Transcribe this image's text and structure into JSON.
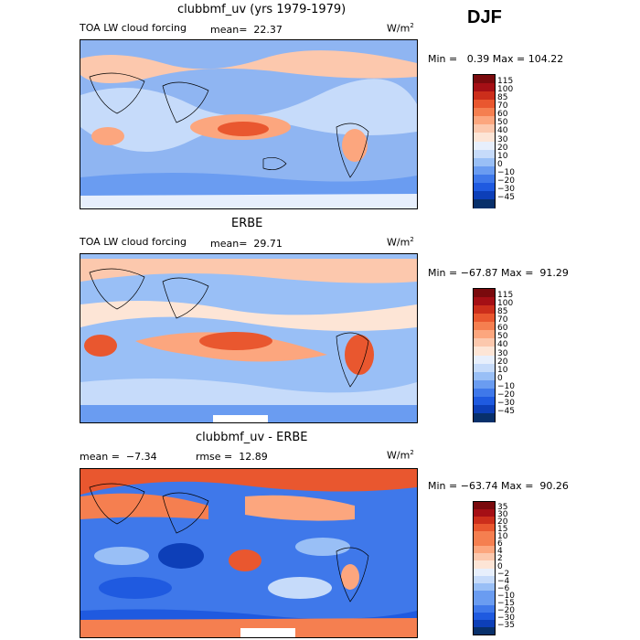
{
  "season": "DJF",
  "colorscale_abs": [
    "#08306b",
    "#0d3fb8",
    "#1f5ae0",
    "#3f78ea",
    "#6a9cf1",
    "#99bff6",
    "#c6dbfa",
    "#e7effc",
    "#fde5d6",
    "#fcc8ad",
    "#fca67e",
    "#f57f50",
    "#e9572f",
    "#cc2e1b",
    "#a50f15",
    "#7a0a0d"
  ],
  "colorscale_diff": [
    "#08306b",
    "#0d3fb8",
    "#1f5ae0",
    "#3f78ea",
    "#6a9cf1",
    "#99bff6",
    "#c6dbfa",
    "#e7effc",
    "#fde5d6",
    "#fcc8ad",
    "#fca67e",
    "#f57f50",
    "#e9572f",
    "#cc2e1b",
    "#a50f15",
    "#7a0a0d"
  ],
  "panels": [
    {
      "title": "clubbmf_uv (yrs 1979-1979)",
      "variable": "TOA LW cloud forcing",
      "mean_label": "mean=",
      "mean_value": "22.37",
      "units": "W/m",
      "units_exp": "2",
      "min_label": "Min =",
      "min_value": "0.39",
      "max_label": "Max =",
      "max_value": "104.22",
      "levels": [
        "115",
        "100",
        "85",
        "70",
        "60",
        "50",
        "40",
        "30",
        "20",
        "10",
        "0",
        "−10",
        "−20",
        "−30",
        "−45"
      ]
    },
    {
      "title": "ERBE",
      "variable": "TOA LW cloud forcing",
      "mean_label": "mean=",
      "mean_value": "29.71",
      "units": "W/m",
      "units_exp": "2",
      "min_label": "Min =",
      "min_value": "−67.87",
      "max_label": "Max =",
      "max_value": "91.29",
      "levels": [
        "115",
        "100",
        "85",
        "70",
        "60",
        "50",
        "40",
        "30",
        "20",
        "10",
        "0",
        "−10",
        "−20",
        "−30",
        "−45"
      ]
    },
    {
      "title": "clubbmf_uv - ERBE",
      "mean_label": "mean =",
      "mean_value": "−7.34",
      "rmse_label": "rmse =",
      "rmse_value": "12.89",
      "units": "W/m",
      "units_exp": "2",
      "min_label": "Min =",
      "min_value": "−63.74",
      "max_label": "Max =",
      "max_value": "90.26",
      "levels": [
        "35",
        "30",
        "20",
        "15",
        "10",
        "6",
        "4",
        "2",
        "0",
        "−2",
        "−4",
        "−6",
        "−10",
        "−15",
        "−20",
        "−30",
        "−35"
      ]
    }
  ],
  "chart_data": [
    {
      "type": "heatmap",
      "title": "clubbmf_uv (yrs 1979-1979)",
      "subtitle": "TOA LW cloud forcing",
      "units": "W/m2",
      "mean": 22.37,
      "min": 0.39,
      "max": 104.22,
      "levels": [
        -45,
        -30,
        -20,
        -10,
        0,
        10,
        20,
        30,
        40,
        50,
        60,
        70,
        85,
        100,
        115
      ]
    },
    {
      "type": "heatmap",
      "title": "ERBE",
      "subtitle": "TOA LW cloud forcing",
      "units": "W/m2",
      "mean": 29.71,
      "min": -67.87,
      "max": 91.29,
      "levels": [
        -45,
        -30,
        -20,
        -10,
        0,
        10,
        20,
        30,
        40,
        50,
        60,
        70,
        85,
        100,
        115
      ]
    },
    {
      "type": "heatmap",
      "title": "clubbmf_uv - ERBE",
      "units": "W/m2",
      "mean": -7.34,
      "rmse": 12.89,
      "min": -63.74,
      "max": 90.26,
      "levels": [
        -35,
        -30,
        -20,
        -15,
        -10,
        -6,
        -4,
        -2,
        0,
        2,
        4,
        6,
        10,
        15,
        20,
        30,
        35
      ]
    }
  ]
}
